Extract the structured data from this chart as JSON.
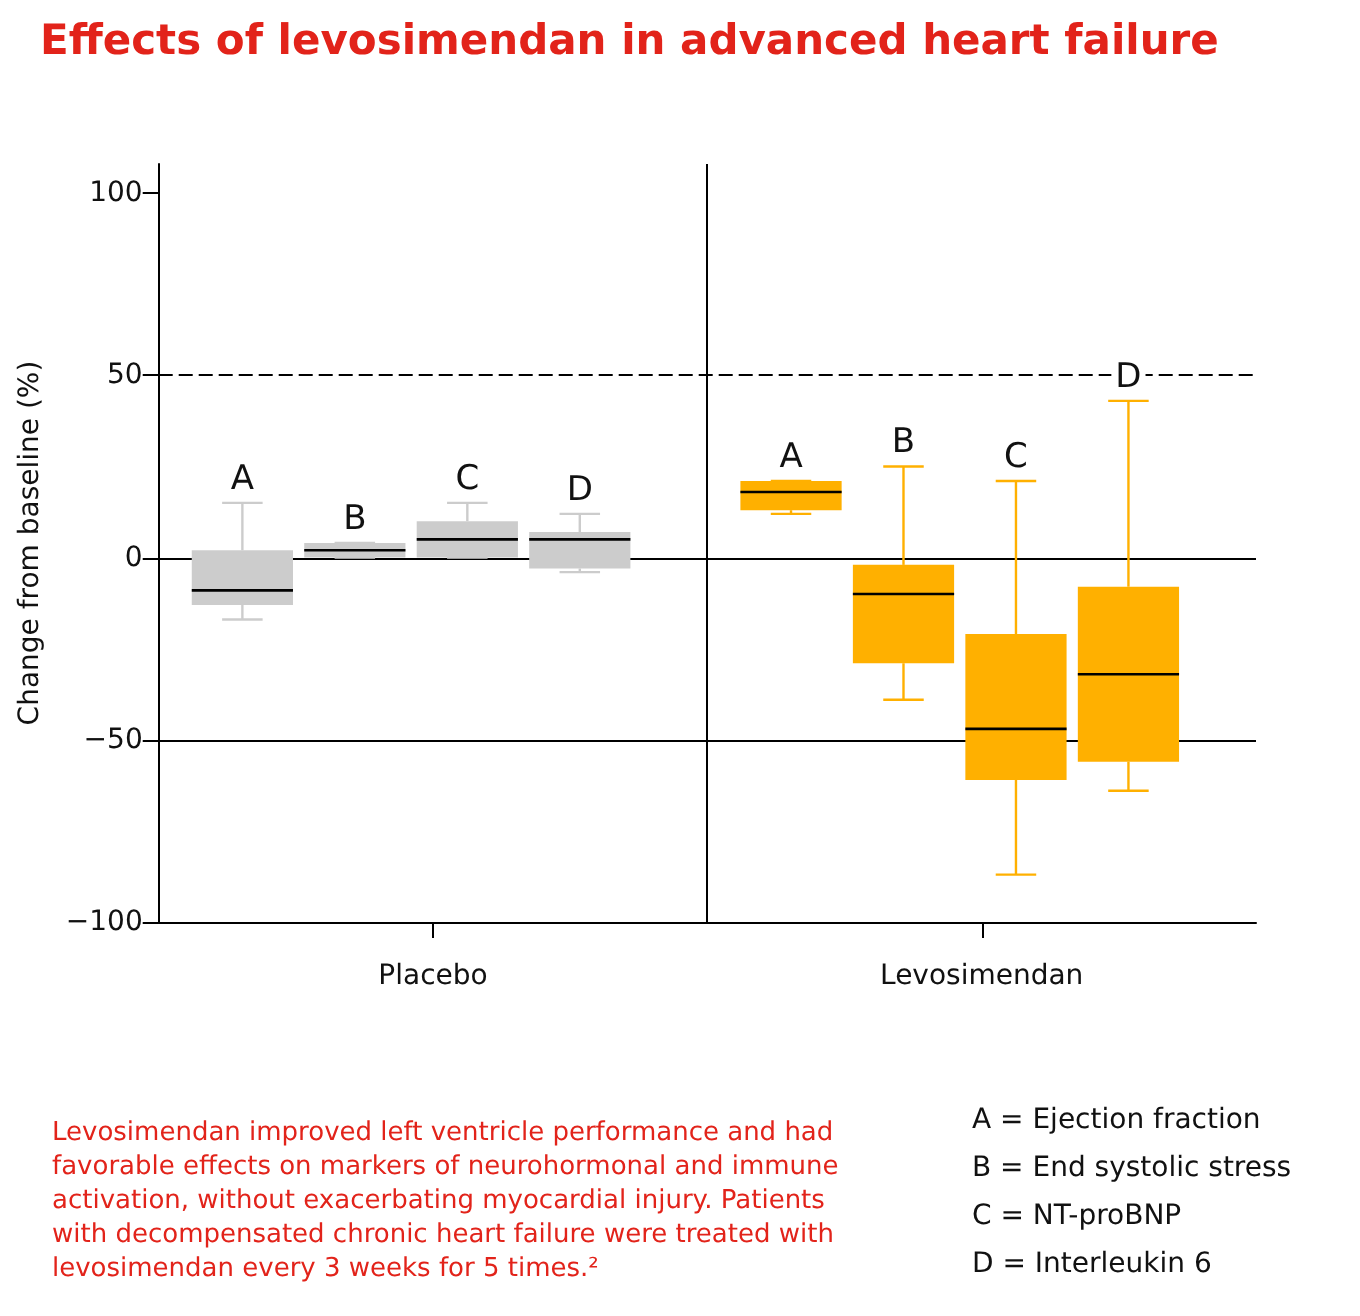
{
  "chart_data": {
    "type": "box",
    "title": "Effects of levosimendan in advanced heart failure",
    "ylabel": "Change from baseline (%)",
    "categories": [
      "Placebo",
      "Levosimendan"
    ],
    "series": [
      {
        "name": "A",
        "colors": [
          "#cccccc",
          "#ffb000"
        ],
        "boxes": [
          {
            "low": -17,
            "q1": -13,
            "median": -9,
            "q3": 2,
            "high": 15
          },
          {
            "low": 12,
            "q1": 13,
            "median": 18,
            "q3": 21,
            "high": 21
          }
        ]
      },
      {
        "name": "B",
        "colors": [
          "#cccccc",
          "#ffb000"
        ],
        "boxes": [
          {
            "low": 0,
            "q1": 0,
            "median": 2,
            "q3": 4,
            "high": 4
          },
          {
            "low": -39,
            "q1": -29,
            "median": -10,
            "q3": -2,
            "high": 25
          }
        ]
      },
      {
        "name": "C",
        "colors": [
          "#cccccc",
          "#ffb000"
        ],
        "boxes": [
          {
            "low": 0,
            "q1": 0,
            "median": 5,
            "q3": 10,
            "high": 15
          },
          {
            "low": -87,
            "q1": -61,
            "median": -47,
            "q3": -21,
            "high": 21
          }
        ]
      },
      {
        "name": "D",
        "colors": [
          "#cccccc",
          "#ffb000"
        ],
        "boxes": [
          {
            "low": -4,
            "q1": -3,
            "median": 5,
            "q3": 7,
            "high": 12
          },
          {
            "low": -64,
            "q1": -56,
            "median": -32,
            "q3": -8,
            "high": 43
          }
        ]
      }
    ],
    "ylim": [
      -100,
      108
    ],
    "yticks": [
      {
        "value": -100,
        "label": "−100"
      },
      {
        "value": -50,
        "label": "−50"
      },
      0,
      50,
      100
    ],
    "ref_lines": [
      {
        "axis": "y",
        "value": 50,
        "line_style": "dashed"
      },
      {
        "axis": "y",
        "value": 0,
        "line_style": "solid"
      },
      {
        "axis": "y",
        "value": -50,
        "line_style": "solid"
      }
    ],
    "grid": "x",
    "annotations": [
      "Levosimendan improved left ventricle performance and had favorable effects on markers of neurohormonal and immune activation, without exacerbating myocardial injury. Patients with decompensated chronic heart failure were treated with levosimendan every 3 weeks for 5 times.²",
      "A = Ejection fraction",
      "B = End systolic stress",
      "C = NT-proBNP",
      "D = Interleukin 6"
    ]
  }
}
